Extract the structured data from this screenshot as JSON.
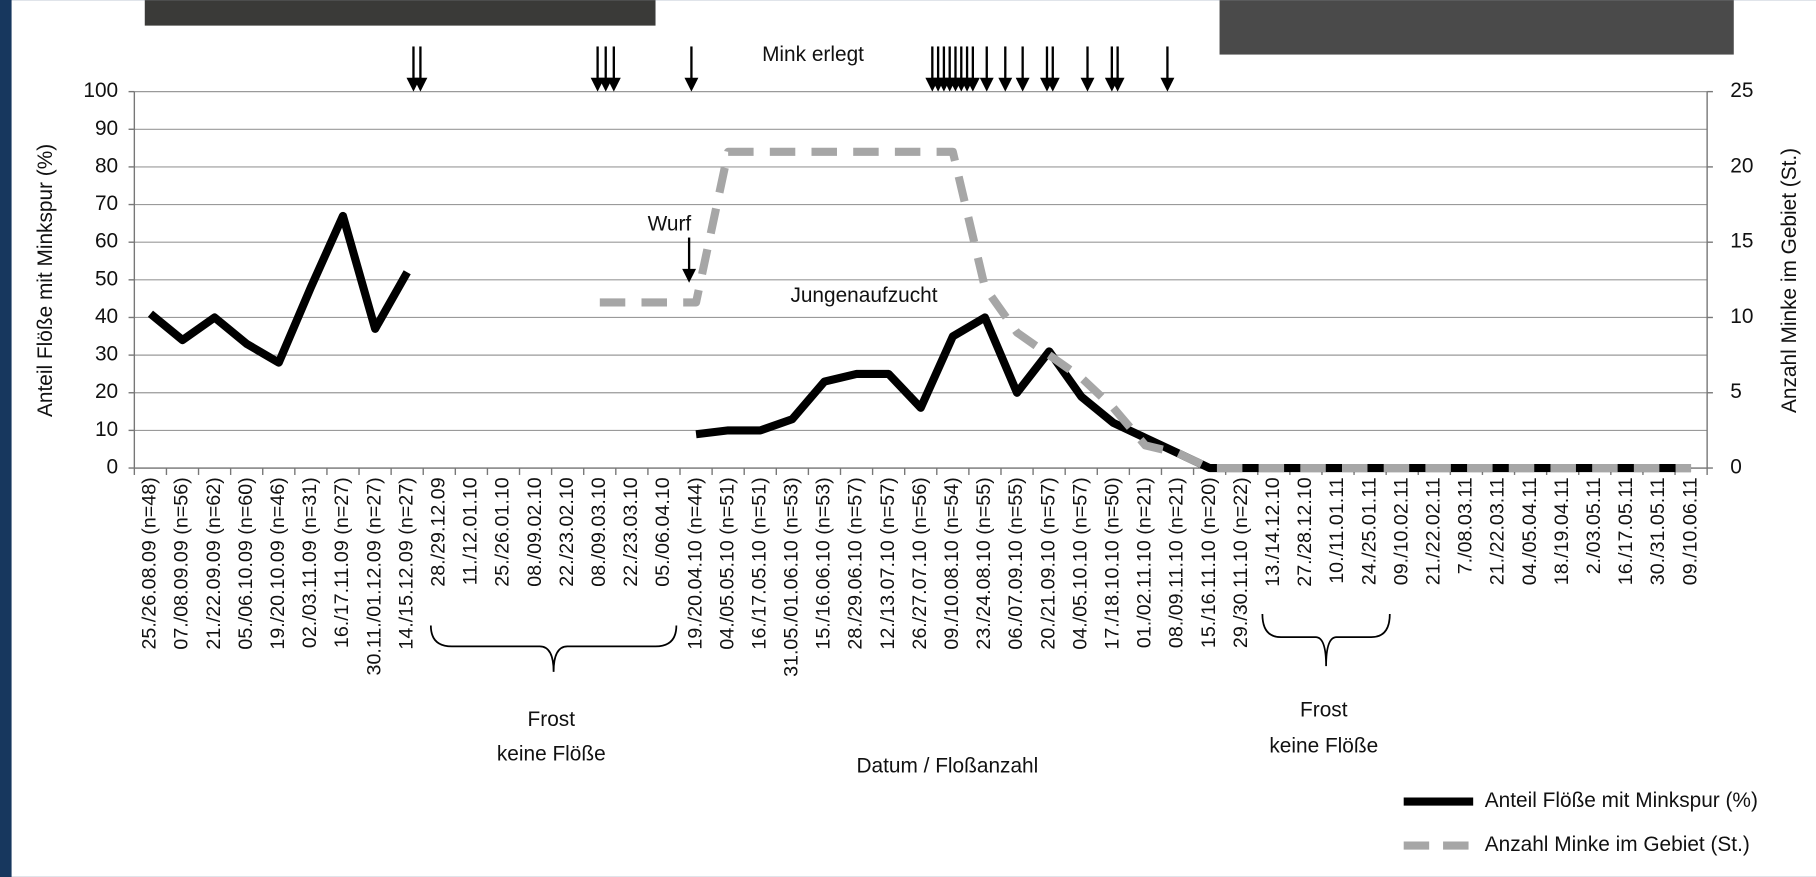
{
  "chart_data": {
    "type": "line",
    "ylabel": "Anteil Flöße mit Minkspur (%)",
    "y2label": "Anzahl Minke im Gebiet (St.)",
    "xlabel": "Datum / Floßanzahl",
    "annotations": [
      "Mink erlegt",
      "Wurf",
      "Jungenaufzucht",
      "Frost",
      "keine Flöße",
      "Frost",
      "keine Flöße"
    ],
    "categories": [
      "25./26.08.09 (n=48)",
      "07./08.09.09 (n=56)",
      "21./22.09.09 (n=62)",
      "05./06.10.09 (n=60)",
      "19./20.10.09 (n=46)",
      "02./03.11.09 (n=31)",
      "16./17.11.09 (n=27)",
      "30.11./01.12.09 (n=27)",
      "14./15.12.09 (n=27)",
      "28./29.12.09",
      "11./12.01.10",
      "25./26.01.10",
      "08./09.02.10",
      "22./23.02.10",
      "08./09.03.10",
      "22./23.03.10",
      "05./06.04.10",
      "19./20.04.10 (n=44)",
      "04./05.05.10 (n=51)",
      "16./17.05.10 (n=51)",
      "31.05./01.06.10 (n=53)",
      "15./16.06.10 (n=53)",
      "28./29.06.10 (n=57)",
      "12./13.07.10 (n=57)",
      "26./27.07.10 (n=56)",
      "09./10.08.10 (n=54)",
      "23./24.08.10 (n=55)",
      "06./07.09.10 (n=55)",
      "20./21.09.10 (n=57)",
      "04./05.10.10 (n=57)",
      "17./18.10.10 (n=50)",
      "01./02.11.10 (n=21)",
      "08./09.11.10 (n=21)",
      "15./16.11.10 (n=20)",
      "29./30.11.10 (n=22)",
      "13./14.12.10",
      "27./28.12.10",
      "10./11.01.11",
      "24./25.01.11",
      "09./10.02.11",
      "21./22.02.11",
      "7./08.03.11",
      "21./22.03.11",
      "04./05.04.11",
      "18./19.04.11",
      "2./03.05.11",
      "16./17.05.11",
      "30./31.05.11",
      "09./10.06.11"
    ],
    "series": [
      {
        "name": "Anteil Flöße mit Minkspur (%)",
        "color": "#000000",
        "style": "solid",
        "values": [
          41,
          34,
          40,
          33,
          28,
          48,
          67,
          37,
          52,
          null,
          null,
          null,
          null,
          null,
          null,
          null,
          null,
          9,
          10,
          10,
          13,
          23,
          25,
          25,
          16,
          35,
          40,
          20,
          31,
          19,
          12,
          8,
          4,
          0,
          0,
          0,
          0,
          0,
          0,
          0,
          0,
          0,
          0,
          0,
          0,
          0,
          0,
          0,
          0
        ]
      },
      {
        "name": "Anzahl Minke im Gebiet (St.)",
        "color": "#a6a6a6",
        "style": "dashed",
        "axis": "y2",
        "values": [
          null,
          null,
          null,
          null,
          null,
          null,
          null,
          null,
          null,
          null,
          null,
          null,
          null,
          null,
          11,
          11,
          11,
          11,
          21,
          21,
          21,
          21,
          21,
          21,
          21,
          21,
          12,
          9,
          7.5,
          6,
          4,
          1.5,
          1,
          0,
          0,
          0,
          0,
          0,
          0,
          0,
          0,
          0,
          0,
          0,
          0,
          0,
          0,
          0,
          0
        ]
      }
    ],
    "ylim": [
      0,
      100
    ],
    "yticks": [
      0,
      10,
      20,
      30,
      40,
      50,
      60,
      70,
      80,
      90,
      100
    ],
    "y2lim": [
      0,
      25
    ],
    "y2ticks": [
      0,
      5,
      10,
      15,
      20,
      25
    ],
    "grid": true
  }
}
